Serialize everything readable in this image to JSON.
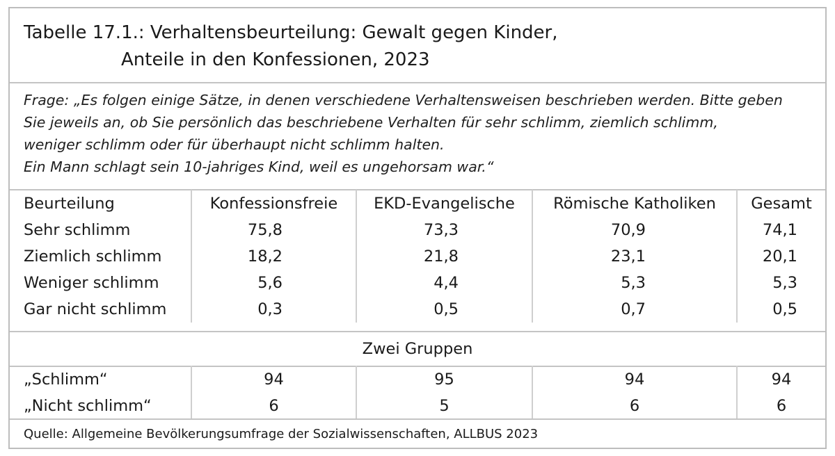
{
  "title": {
    "line1": "Tabelle 17.1.: Verhaltensbeurteilung: Gewalt gegen Kinder,",
    "line2": "Anteile in den Konfessionen, 2023"
  },
  "question": {
    "lines": [
      "Frage: „Es folgen einige Sätze, in denen verschiedene Verhaltensweisen beschrieben werden. Bitte geben",
      "Sie jeweils an, ob Sie persönlich das beschriebene Verhalten für sehr schlimm, ziemlich schlimm,",
      "weniger schlimm oder für überhaupt nicht schlimm halten.",
      "Ein Mann schlagt sein 10-jahriges Kind, weil es ungehorsam war.“"
    ]
  },
  "table": {
    "headers": [
      "Beurteilung",
      "Konfessionsfreie",
      "EKD-Evangelische",
      "Römische Katholiken",
      "Gesamt"
    ],
    "rows": [
      [
        "Sehr schlimm",
        "75,8",
        "73,3",
        "70,9",
        "74,1"
      ],
      [
        "Ziemlich schlimm",
        "18,2",
        "21,8",
        "23,1",
        "20,1"
      ],
      [
        "Weniger schlimm",
        "5,6",
        "4,4",
        "5,3",
        "5,3"
      ],
      [
        "Gar nicht schlimm",
        "0,3",
        "0,5",
        "0,7",
        "0,5"
      ]
    ]
  },
  "groups": {
    "heading": "Zwei Gruppen",
    "rows": [
      [
        "„Schlimm“",
        "94",
        "95",
        "94",
        "94"
      ],
      [
        "„Nicht schlimm“",
        "6",
        "5",
        "6",
        "6"
      ]
    ]
  },
  "source": "Quelle: Allgemeine Bevölkerungsumfrage der Sozialwissenschaften, ALLBUS 2023"
}
